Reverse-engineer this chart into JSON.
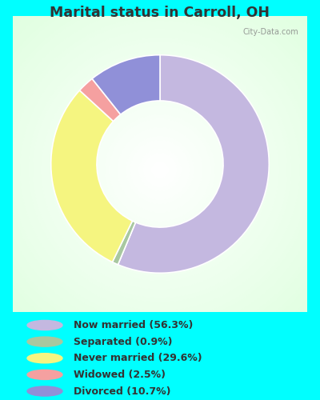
{
  "title": "Marital status in Carroll, OH",
  "title_color": "#333333",
  "background_color": "#00FFFF",
  "chart_bg_top_color": "#e8f5e8",
  "chart_bg_center_color": "#f5fdf5",
  "slices": [
    {
      "label": "Now married (56.3%)",
      "value": 56.3,
      "color": "#c4b8e0"
    },
    {
      "label": "Separated (0.9%)",
      "value": 0.9,
      "color": "#a8c8a0"
    },
    {
      "label": "Never married (29.6%)",
      "value": 29.6,
      "color": "#f5f580"
    },
    {
      "label": "Widowed (2.5%)",
      "value": 2.5,
      "color": "#f5a0a0"
    },
    {
      "label": "Divorced (10.7%)",
      "value": 10.7,
      "color": "#9090d8"
    }
  ],
  "legend_colors": [
    "#c4b8e0",
    "#a8c8a0",
    "#f5f580",
    "#f5a0a0",
    "#9090d8"
  ],
  "legend_labels": [
    "Now married (56.3%)",
    "Separated (0.9%)",
    "Never married (29.6%)",
    "Widowed (2.5%)",
    "Divorced (10.7%)"
  ],
  "startangle": 90,
  "watermark": "City-Data.com",
  "donut_width": 0.42
}
